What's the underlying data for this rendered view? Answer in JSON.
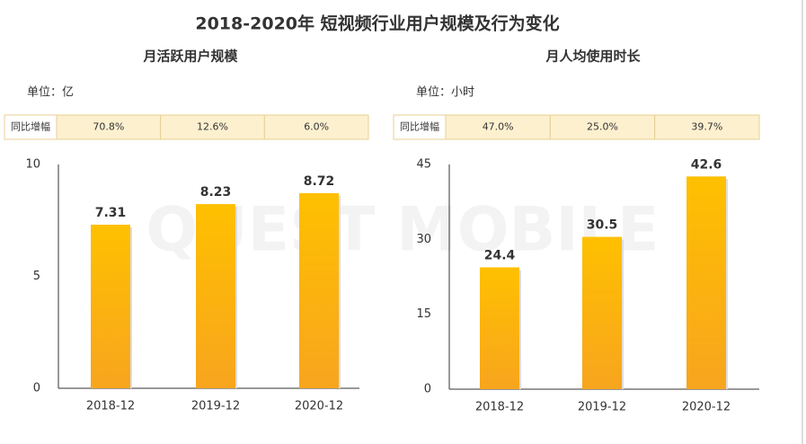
{
  "title": "2018-2020年 短视频行业用户规模及行为变化",
  "watermark": "QUEST MOBILE",
  "chart_data": [
    {
      "type": "bar",
      "title": "月活跃用户规模",
      "unit": "单位：亿",
      "growth": {
        "label": "同比增幅",
        "values": [
          70.8,
          12.6,
          6.0
        ],
        "value_labels": [
          "70.8%",
          "12.6%",
          "6.0%"
        ]
      },
      "categories": [
        "2018-12",
        "2019-12",
        "2020-12"
      ],
      "values": [
        7.31,
        8.23,
        8.72
      ],
      "color": "#ffc000",
      "ylim": [
        0,
        10
      ],
      "yticks": [
        0,
        5,
        10
      ]
    },
    {
      "type": "bar",
      "title": "月人均使用时长",
      "unit": "单位：小时",
      "growth": {
        "label": "同比增幅",
        "values": [
          47.0,
          25.0,
          39.7
        ],
        "value_labels": [
          "47.0%",
          "25.0%",
          "39.7%"
        ]
      },
      "categories": [
        "2018-12",
        "2019-12",
        "2020-12"
      ],
      "values": [
        24.4,
        30.5,
        42.6
      ],
      "color": "#ffc000",
      "ylim": [
        0,
        45
      ],
      "yticks": [
        0,
        15,
        30,
        45
      ]
    }
  ]
}
